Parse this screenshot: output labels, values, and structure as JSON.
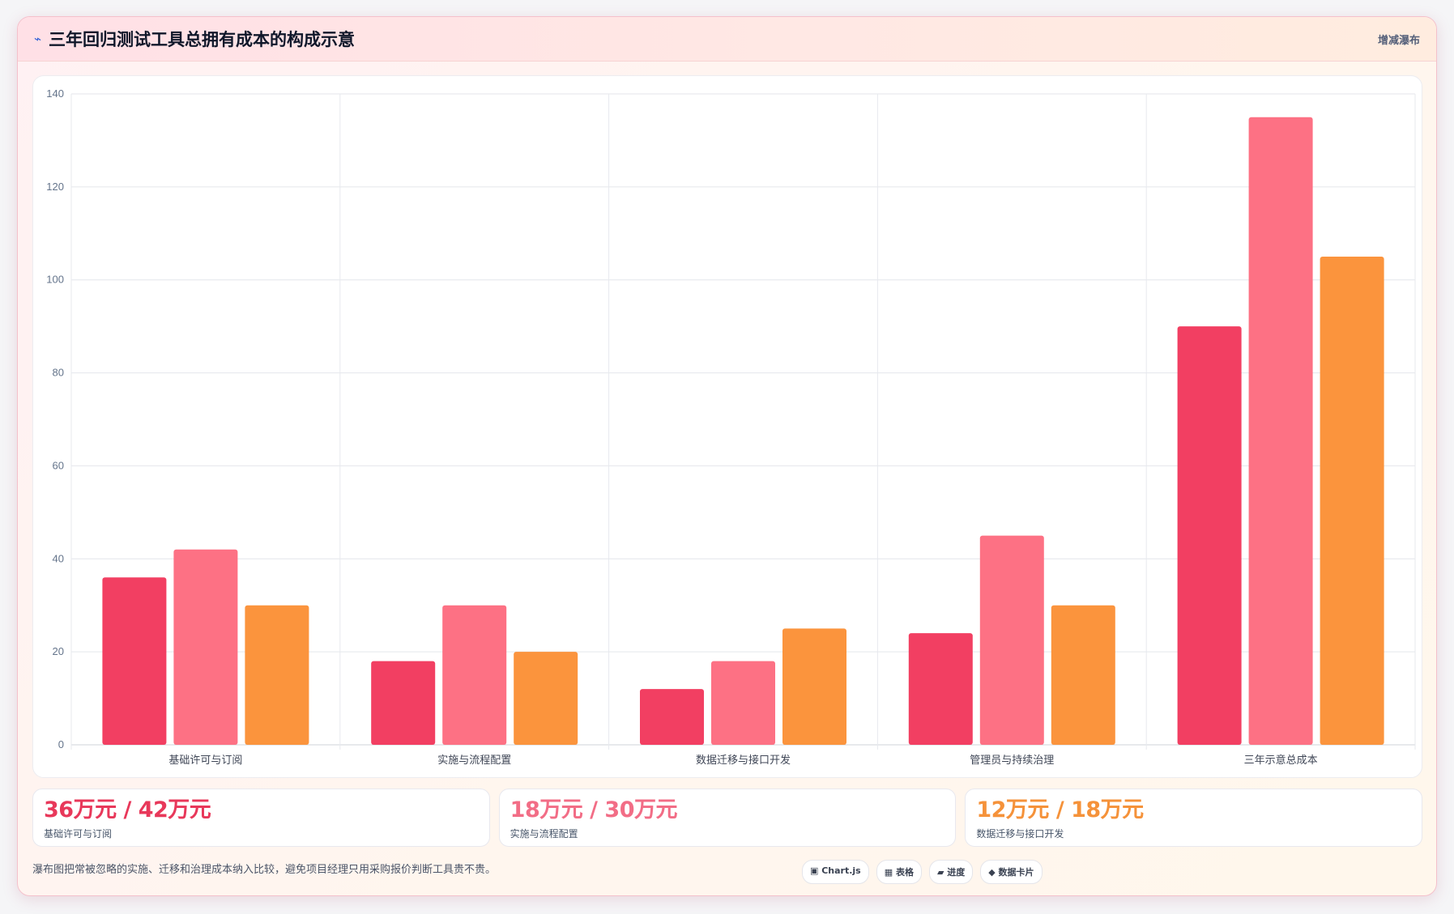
{
  "header": {
    "icon": "lightning-icon",
    "icon_glyph": "⌁",
    "title": "三年回归测试工具总拥有成本的构成示意",
    "tag": "增减瀑布"
  },
  "chart_data": {
    "type": "bar",
    "categories": [
      "基础许可与订阅",
      "实施与流程配置",
      "数据迁移与接口开发",
      "管理员与持续治理",
      "三年示意总成本"
    ],
    "series": [
      {
        "values": [
          36,
          18,
          12,
          24,
          90
        ],
        "color": "#f23f62"
      },
      {
        "values": [
          42,
          30,
          18,
          45,
          135
        ],
        "color": "#fd7184"
      },
      {
        "values": [
          30,
          20,
          25,
          30,
          105
        ],
        "color": "#fb943d"
      }
    ],
    "ylim": [
      0,
      140
    ],
    "yticks": [
      0,
      20,
      40,
      60,
      80,
      100,
      120,
      140
    ],
    "grid": true,
    "legend": "none"
  },
  "kpis": [
    {
      "value": "36万元 / 42万元",
      "label": "基础许可与订阅",
      "color": "#e8385a"
    },
    {
      "value": "18万元 / 30万元",
      "label": "实施与流程配置",
      "color": "#f26d86"
    },
    {
      "value": "12万元 / 18万元",
      "label": "数据迁移与接口开发",
      "color": "#f5923a"
    }
  ],
  "footer": {
    "note": "瀑布图把常被忽略的实施、迁移和治理成本纳入比较，避免项目经理只用采购报价判断工具贵不贵。",
    "chips": [
      "▣ Chart.js",
      "▦ 表格",
      "▰ 进度",
      "◆ 数据卡片"
    ]
  }
}
